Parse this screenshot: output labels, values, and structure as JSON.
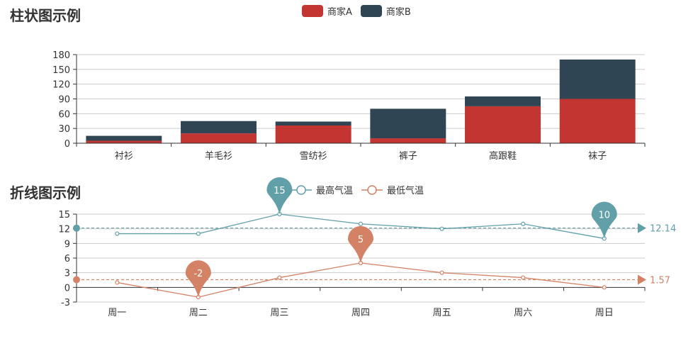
{
  "chart_data": [
    {
      "type": "bar",
      "title": "柱状图示例",
      "categories": [
        "衬衫",
        "羊毛衫",
        "雪纺衫",
        "裤子",
        "高跟鞋",
        "袜子"
      ],
      "stacked": true,
      "series": [
        {
          "name": "商家A",
          "color": "#c23531",
          "values": [
            5,
            20,
            36,
            10,
            75,
            90
          ]
        },
        {
          "name": "商家B",
          "color": "#2f4554",
          "values": [
            10,
            25,
            8,
            60,
            20,
            80
          ]
        }
      ],
      "yticks": [
        0,
        30,
        60,
        90,
        120,
        150,
        180
      ],
      "ylim": [
        0,
        180
      ],
      "grid": true,
      "legend": "top-center"
    },
    {
      "type": "line",
      "title": "折线图示例",
      "categories": [
        "周一",
        "周二",
        "周三",
        "周四",
        "周五",
        "周六",
        "周日"
      ],
      "series": [
        {
          "name": "最高气温",
          "color": "#61a0a8",
          "values": [
            11,
            11,
            15,
            13,
            12,
            13,
            10
          ],
          "mark_points": [
            {
              "label": "15",
              "index": 2
            },
            {
              "label": "10",
              "index": 6
            }
          ],
          "mark_line": {
            "label": "12.14",
            "value": 12.14
          }
        },
        {
          "name": "最低气温",
          "color": "#d48265",
          "values": [
            1,
            -2,
            2,
            5,
            3,
            2,
            0
          ],
          "mark_points": [
            {
              "label": "-2",
              "index": 1
            },
            {
              "label": "5",
              "index": 3
            }
          ],
          "mark_line": {
            "label": "1.57",
            "value": 1.57
          }
        }
      ],
      "yticks": [
        -3,
        0,
        3,
        6,
        9,
        12,
        15
      ],
      "ylim": [
        -3,
        15
      ],
      "grid": true,
      "legend": "top-center"
    }
  ]
}
